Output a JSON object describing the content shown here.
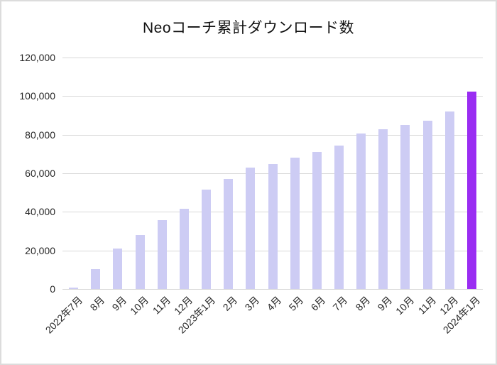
{
  "chart_data": {
    "type": "bar",
    "title": "Neoコーチ累計ダウンロード数",
    "categories": [
      "2022年7月",
      "8月",
      "9月",
      "10月",
      "11月",
      "12月",
      "2023年1月",
      "2月",
      "3月",
      "4月",
      "5月",
      "6月",
      "7月",
      "8月",
      "9月",
      "10月",
      "11月",
      "12月",
      "2024年1月"
    ],
    "values": [
      600,
      10300,
      21100,
      28000,
      35600,
      41600,
      51400,
      57200,
      62800,
      64800,
      68100,
      71200,
      74200,
      80700,
      82700,
      85000,
      87400,
      91900,
      102400
    ],
    "xlabel": "",
    "ylabel": "",
    "ylim": [
      0,
      120000
    ],
    "ytick_step": 20000,
    "ytick_labels": [
      "0",
      "20,000",
      "40,000",
      "60,000",
      "80,000",
      "100,000",
      "120,000"
    ],
    "grid": true,
    "legend": "none",
    "colors": {
      "bar_default": "#cdccf4",
      "bar_highlight": "#9a2df2",
      "gridline": "#d9d9d9",
      "text": "#262626",
      "title_text": "#111111",
      "frame_border": "#dcdcdc",
      "background": "#ffffff"
    },
    "highlight_index": 18
  }
}
